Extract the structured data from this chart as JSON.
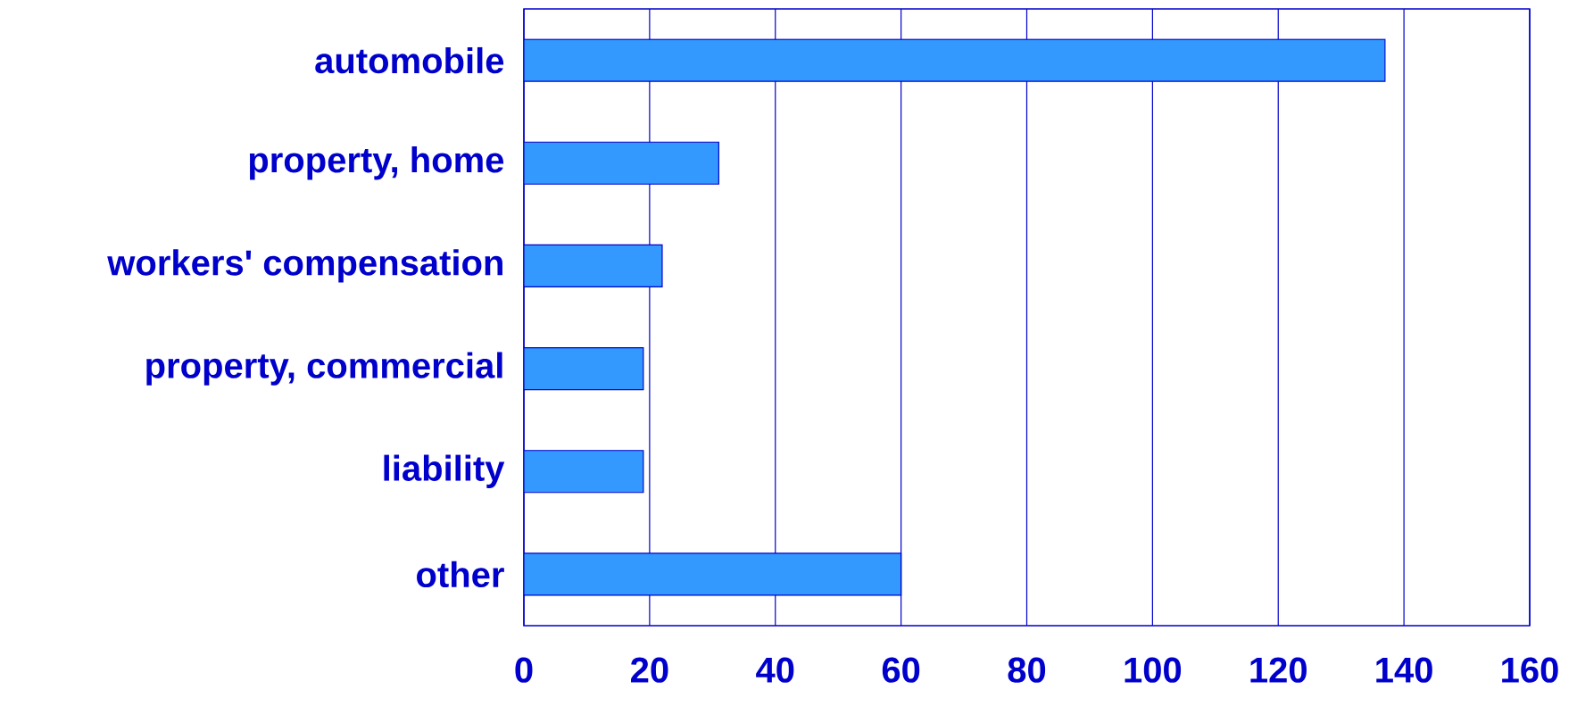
{
  "chart_data": {
    "type": "bar",
    "orientation": "horizontal",
    "categories": [
      "automobile",
      "property, home",
      "workers' compensation",
      "property, commercial",
      "liability",
      "other"
    ],
    "values": [
      137,
      31,
      22,
      19,
      19,
      60
    ],
    "color": "#3399ff",
    "xlim": [
      0,
      160
    ],
    "xticks": [
      0,
      20,
      40,
      60,
      80,
      100,
      120,
      140,
      160
    ],
    "grid": "x"
  }
}
